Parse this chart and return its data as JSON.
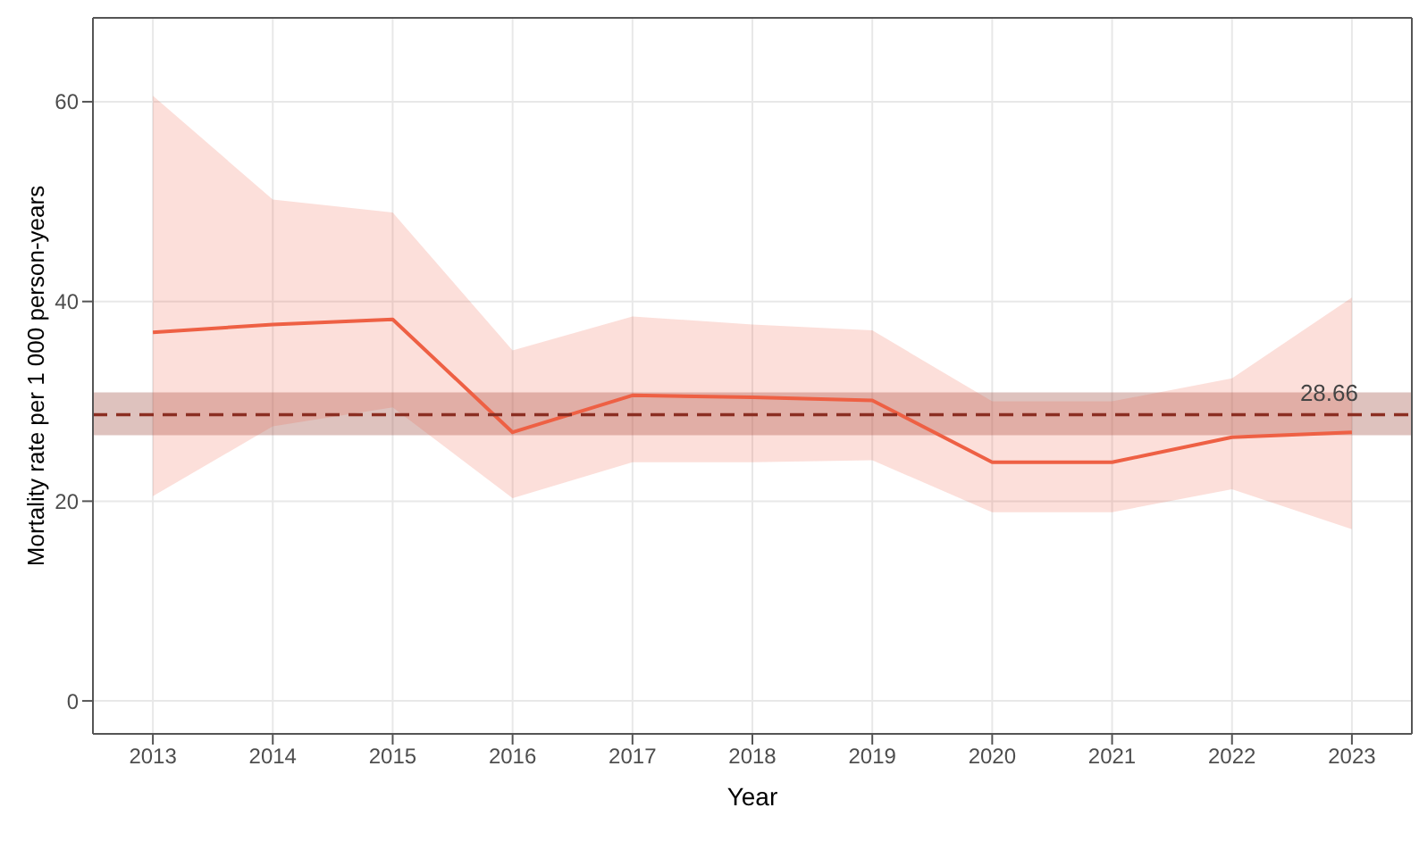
{
  "chart_data": {
    "type": "line",
    "xlabel": "Year",
    "ylabel": "Mortality rate per 1 000 person-years",
    "x": [
      2013,
      2014,
      2015,
      2016,
      2017,
      2018,
      2019,
      2020,
      2021,
      2022,
      2023
    ],
    "series": [
      {
        "color": "#ee6044",
        "values": [
          36.9,
          37.7,
          38.2,
          26.9,
          30.6,
          30.4,
          30.1,
          23.9,
          23.9,
          26.4,
          26.9
        ],
        "lower": [
          20.5,
          27.5,
          29.4,
          20.3,
          23.9,
          23.9,
          24.1,
          18.9,
          18.9,
          21.2,
          17.2
        ],
        "upper": [
          60.6,
          50.2,
          48.9,
          35.1,
          38.5,
          37.7,
          37.1,
          30.0,
          30.0,
          32.3,
          40.4
        ]
      }
    ],
    "ref_lines": [
      {
        "axis": "y",
        "value": 28.66,
        "label": "28.66",
        "color": "#8b2e22",
        "line_style": "dashed"
      }
    ],
    "bands": [
      {
        "axis": "y",
        "from": 26.6,
        "to": 30.9,
        "color": "#a05045"
      }
    ],
    "xlim": [
      2012.5,
      2023.5
    ],
    "xticks": [
      2013,
      2014,
      2015,
      2016,
      2017,
      2018,
      2019,
      2020,
      2021,
      2022,
      2023
    ],
    "ylim": [
      -3.3,
      68.4
    ],
    "yticks": [
      0,
      20,
      40,
      60
    ],
    "grid": true
  }
}
